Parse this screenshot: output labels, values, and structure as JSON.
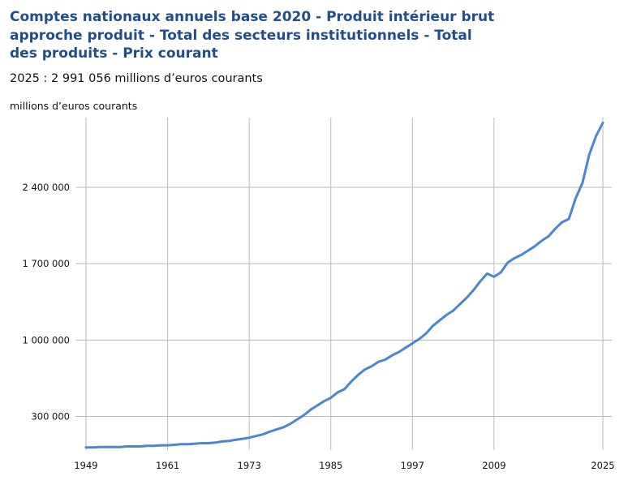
{
  "header": {
    "title": "Comptes nationaux annuels base 2020 - Produit intérieur brut approche produit - Total des secteurs institutionnels - Total des produits - Prix courant",
    "subtitle": "2025 : 2 991 056 millions d’euros courants",
    "unit": "millions d’euros courants"
  },
  "chart_data": {
    "type": "line",
    "title": "Comptes nationaux annuels base 2020 - Produit intérieur brut approche produit - Total des secteurs institutionnels - Total des produits - Prix courant",
    "xlabel": "",
    "ylabel": "millions d’euros courants",
    "x_ticks": [
      "1949",
      "1961",
      "1973",
      "1985",
      "1997",
      "2009",
      "2025"
    ],
    "y_ticks": [
      300000,
      1000000,
      1700000,
      2400000
    ],
    "y_tick_labels": [
      "300 000",
      "1 000 000",
      "1 700 000",
      "2 400 000"
    ],
    "ylim": [
      0,
      3050000
    ],
    "xlim": [
      1949,
      2025
    ],
    "grid": true,
    "line_color": "#4a86d2",
    "series": [
      {
        "x": [
          1949,
          1950,
          1951,
          1952,
          1953,
          1954,
          1955,
          1956,
          1957,
          1958,
          1959,
          1960,
          1961,
          1962,
          1963,
          1964,
          1965,
          1966,
          1967,
          1968,
          1969,
          1970,
          1971,
          1972,
          1973,
          1974,
          1975,
          1976,
          1977,
          1978,
          1979,
          1980,
          1981,
          1982,
          1983,
          1984,
          1985,
          1986,
          1987,
          1988,
          1989,
          1990,
          1991,
          1992,
          1993,
          1994,
          1995,
          1996,
          1997,
          1998,
          1999,
          2000,
          2001,
          2002,
          2003,
          2004,
          2005,
          2006,
          2007,
          2008,
          2009,
          2010,
          2011,
          2012,
          2013,
          2014,
          2015,
          2016,
          2017,
          2018,
          2019,
          2020,
          2021,
          2022,
          2023,
          2024,
          2025
        ],
        "values": [
          15000,
          15000,
          20000,
          20000,
          20000,
          20000,
          25000,
          25000,
          25000,
          30000,
          30000,
          35000,
          35000,
          40000,
          45000,
          45000,
          50000,
          55000,
          55000,
          60000,
          70000,
          75000,
          85000,
          95000,
          105000,
          120000,
          135000,
          160000,
          180000,
          200000,
          230000,
          270000,
          310000,
          360000,
          400000,
          440000,
          470000,
          520000,
          550000,
          620000,
          680000,
          730000,
          760000,
          800000,
          820000,
          860000,
          890000,
          930000,
          970000,
          1010000,
          1060000,
          1130000,
          1180000,
          1230000,
          1270000,
          1330000,
          1390000,
          1460000,
          1540000,
          1610000,
          1580000,
          1620000,
          1710000,
          1750000,
          1780000,
          1820000,
          1860000,
          1910000,
          1950000,
          2020000,
          2080000,
          2110000,
          2300000,
          2440000,
          2700000,
          2870000,
          2991056
        ]
      }
    ]
  }
}
